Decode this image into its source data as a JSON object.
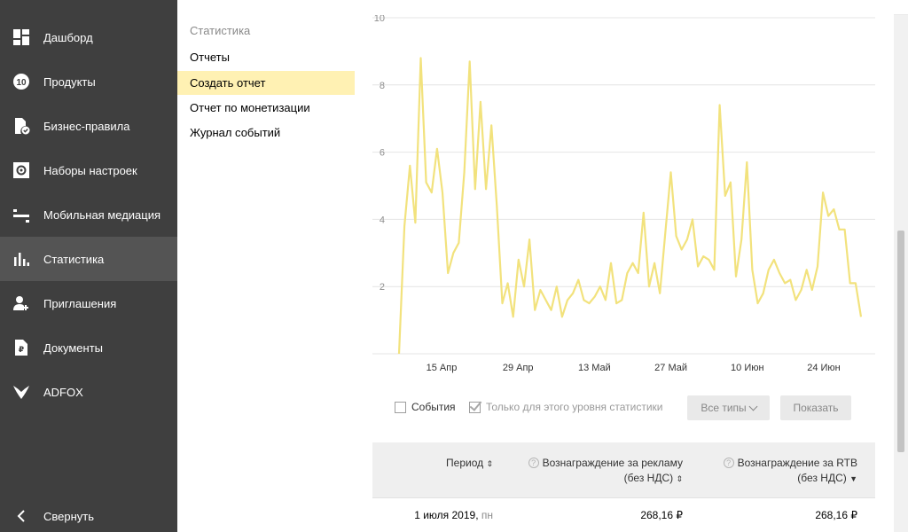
{
  "sidebar": {
    "items": [
      {
        "label": "Дашборд",
        "icon": "dashboard-icon"
      },
      {
        "label": "Продукты",
        "icon": "products-icon"
      },
      {
        "label": "Бизнес-правила",
        "icon": "business-rules-icon"
      },
      {
        "label": "Наборы настроек",
        "icon": "settings-sets-icon"
      },
      {
        "label": "Мобильная медиация",
        "icon": "mediation-icon"
      },
      {
        "label": "Статистика",
        "icon": "statistics-icon"
      },
      {
        "label": "Приглашения",
        "icon": "invitations-icon"
      },
      {
        "label": "Документы",
        "icon": "documents-icon"
      },
      {
        "label": "ADFOX",
        "icon": "adfox-icon"
      }
    ],
    "products_badge": "10",
    "documents_badge": "₽",
    "collapse_label": "Свернуть"
  },
  "submenu": {
    "title": "Статистика",
    "items": [
      "Отчеты",
      "Создать отчет",
      "Отчет по монетизации",
      "Журнал событий"
    ]
  },
  "controls": {
    "events_label": "События",
    "level_only_label": "Только для этого уровня статистики",
    "types_button": "Все типы",
    "show_button": "Показать"
  },
  "table": {
    "headers": {
      "period": "Период",
      "ad_reward_line1": "Вознаграждение за рекламу",
      "ad_reward_line2": "(без НДС)",
      "rtb_reward_line1": "Вознаграждение за RTB",
      "rtb_reward_line2": "(без НДС)"
    },
    "rows": [
      {
        "date": "1 июля 2019,",
        "day": "пн",
        "ad_reward": "268,16 ₽",
        "rtb_reward": "268,16 ₽"
      }
    ]
  },
  "chart_data": {
    "type": "line",
    "y_ticks": [
      "2",
      "4",
      "6",
      "8",
      "10"
    ],
    "x_ticks": [
      "15 Апр",
      "29 Апр",
      "13 Май",
      "27 Май",
      "10 Июн",
      "24 Июн"
    ],
    "ylim": [
      0,
      10
    ],
    "grid": true,
    "color": "#f2e27d",
    "series": [
      {
        "values": [
          0,
          3.8,
          5.6,
          3.9,
          8.8,
          5.1,
          4.8,
          6.1,
          4.8,
          2.4,
          3.0,
          3.3,
          5.4,
          8.7,
          4.9,
          7.5,
          4.9,
          6.8,
          4.4,
          1.5,
          2.1,
          1.1,
          2.8,
          2.0,
          3.4,
          1.3,
          1.9,
          1.6,
          1.3,
          2.0,
          1.1,
          1.6,
          1.8,
          2.2,
          1.6,
          1.5,
          1.7,
          2.0,
          1.6,
          2.7,
          1.5,
          1.6,
          2.4,
          2.7,
          2.4,
          4.2,
          2.0,
          2.7,
          1.8,
          3.6,
          5.4,
          3.5,
          3.1,
          3.4,
          4.0,
          2.6,
          2.9,
          2.8,
          2.5,
          7.4,
          4.7,
          5.1,
          2.3,
          3.4,
          5.7,
          2.5,
          1.5,
          1.8,
          2.5,
          2.8,
          2.4,
          2.1,
          2.2,
          1.6,
          1.9,
          2.5,
          1.9,
          2.6,
          4.8,
          4.1,
          4.3,
          3.7,
          3.7,
          2.1,
          2.1,
          1.1
        ]
      }
    ]
  }
}
